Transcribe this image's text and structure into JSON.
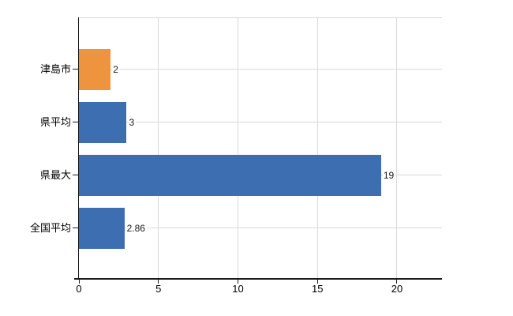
{
  "chart_data": {
    "type": "bar",
    "orientation": "horizontal",
    "categories": [
      "津島市",
      "県平均",
      "県最大",
      "全国平均"
    ],
    "values": [
      2,
      3,
      19,
      2.86
    ],
    "value_labels": [
      "2",
      "3",
      "19",
      "2.86"
    ],
    "bar_colors": [
      "#ef943e",
      "#3d6eb2",
      "#3d6eb2",
      "#3d6eb2"
    ],
    "x_ticks": [
      0,
      5,
      10,
      15,
      20
    ],
    "x_tick_labels": [
      "0",
      "5",
      "10",
      "15",
      "20"
    ],
    "xlim": [
      0,
      22.83
    ],
    "grid": true,
    "legend": false
  },
  "colors": {
    "bar_orange": "#ef943e",
    "bar_blue": "#3d6eb2",
    "axis": "#1a1a1a",
    "gridline": "#d9d9d9",
    "text": "#000000",
    "background": "#ffffff"
  }
}
